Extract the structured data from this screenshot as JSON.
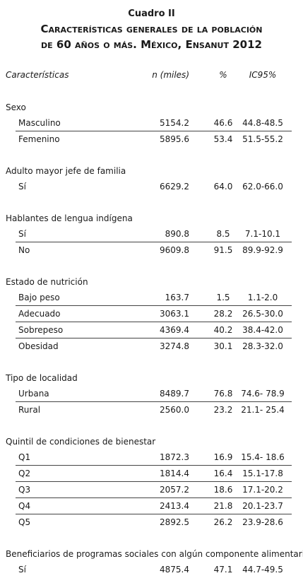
{
  "header": {
    "label": "Cuadro II",
    "title_line1": "Características generales de la población",
    "title_line2": "de 60 años o más. México, Ensanut 2012"
  },
  "table": {
    "columns": [
      "Características",
      "n (miles)",
      "%",
      "IC95%"
    ],
    "groups": [
      {
        "title": "Sexo",
        "rows": [
          [
            "Masculino",
            "5154.2",
            "46.6",
            "44.8-48.5"
          ],
          [
            "Femenino",
            "5895.6",
            "53.4",
            "51.5-55.2"
          ]
        ]
      },
      {
        "title": "Adulto mayor jefe de familia",
        "rows": [
          [
            "Sí",
            "6629.2",
            "64.0",
            "62.0-66.0"
          ]
        ]
      },
      {
        "title": "Hablantes de lengua indígena",
        "rows": [
          [
            "Sí",
            "890.8",
            "8.5",
            "7.1-10.1"
          ],
          [
            "No",
            "9609.8",
            "91.5",
            "89.9-92.9"
          ]
        ]
      },
      {
        "title": "Estado de nutrición",
        "rows": [
          [
            "Bajo peso",
            "163.7",
            "1.5",
            "1.1-2.0"
          ],
          [
            "Adecuado",
            "3063.1",
            "28.2",
            "26.5-30.0"
          ],
          [
            "Sobrepeso",
            "4369.4",
            "40.2",
            "38.4-42.0"
          ],
          [
            "Obesidad",
            "3274.8",
            "30.1",
            "28.3-32.0"
          ]
        ]
      },
      {
        "title": "Tipo de localidad",
        "rows": [
          [
            "Urbana",
            "8489.7",
            "76.8",
            "74.6- 78.9"
          ],
          [
            "Rural",
            "2560.0",
            "23.2",
            "21.1- 25.4"
          ]
        ]
      },
      {
        "title": "Quintil de condiciones de bienestar",
        "rows": [
          [
            "Q1",
            "1872.3",
            "16.9",
            "15.4- 18.6"
          ],
          [
            "Q2",
            "1814.4",
            "16.4",
            "15.1-17.8"
          ],
          [
            "Q3",
            "2057.2",
            "18.6",
            "17.1-20.2"
          ],
          [
            "Q4",
            "2413.4",
            "21.8",
            "20.1-23.7"
          ],
          [
            "Q5",
            "2892.5",
            "26.2",
            "23.9-28.6"
          ]
        ]
      },
      {
        "title": "Beneficiarios de programas sociales con algún componente alimentario",
        "rows": [
          [
            "Sí",
            "4875.4",
            "47.1",
            "44.7-49.5"
          ]
        ]
      }
    ]
  }
}
